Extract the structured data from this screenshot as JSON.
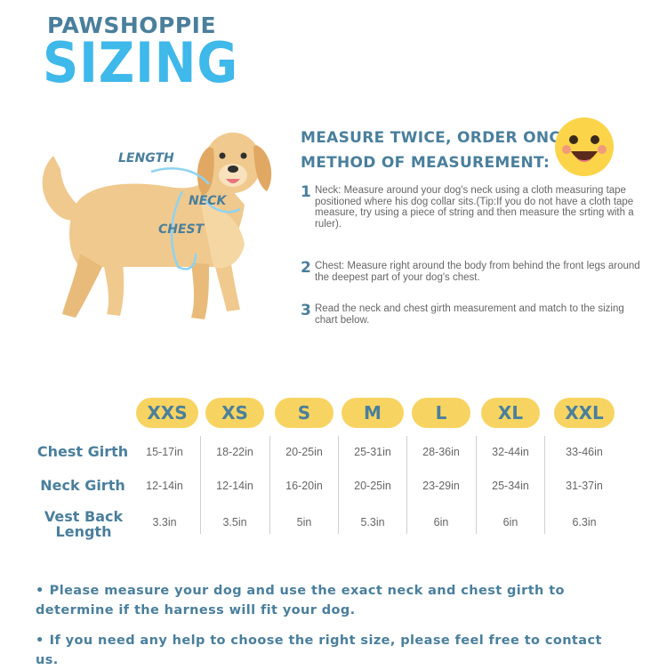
{
  "brand": "PAWSHOPPIE",
  "title": "SIZING",
  "dog_labels": {
    "length": "LENGTH",
    "neck": "NECK",
    "chest": "CHEST"
  },
  "heading1": "MEASURE TWICE, ORDER ONCE",
  "heading2": "METHOD OF MEASUREMENT:",
  "steps": [
    {
      "num": "1",
      "text": "Neck: Measure around your dog's neck using a cloth measuring tape positioned where his dog collar sits.(Tip:If you do not have a cloth tape measure, try using a piece of string and then measure the srting with a ruler)."
    },
    {
      "num": "2",
      "text": "Chest: Measure right around the body from behind the front legs around the deepest part of your dog's chest."
    },
    {
      "num": "3",
      "text": "Read the neck and chest girth measurement and match to the sizing chart below."
    }
  ],
  "sizes": [
    "XXS",
    "XS",
    "S",
    "M",
    "L",
    "XL",
    "XXL"
  ],
  "rows": [
    {
      "label": "Chest Girth",
      "values": [
        "15-17in",
        "18-22in",
        "20-25in",
        "25-31in",
        "28-36in",
        "32-44in",
        "33-46in"
      ]
    },
    {
      "label": "Neck Girth",
      "values": [
        "12-14in",
        "12-14in",
        "16-20in",
        "20-25in",
        "23-29in",
        "25-34in",
        "31-37in"
      ]
    },
    {
      "label": "Vest Back Length",
      "values": [
        "3.3in",
        "3.5in",
        "5in",
        "5.3in",
        "6in",
        "6in",
        "6.3in"
      ]
    }
  ],
  "notes": [
    "Please measure your dog and use the exact neck and chest girth to determine if the harness will fit your dog.",
    "If you need any help to choose the right size, please feel free to contact us."
  ],
  "colors": {
    "accent_blue": "#3fb8ea",
    "heading_blue": "#4a7f9c",
    "pill_yellow": "#f7d461",
    "dog": "#f0c98e"
  }
}
